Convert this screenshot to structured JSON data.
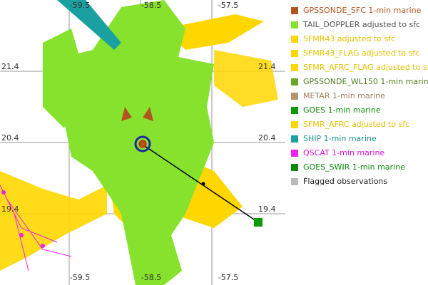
{
  "map": {
    "grid_labels": {
      "top": [
        "-59.5",
        "-58.5",
        "-57.5"
      ],
      "bottom": [
        "-59.5",
        "-58.5",
        "-57.5"
      ],
      "left": [
        "21.4",
        "20.4",
        "19.4"
      ],
      "right": [
        "21.4",
        "20.4",
        "19.4"
      ]
    },
    "legend": [
      {
        "label": "GPSSONDE_SFC 1-min marine",
        "color": "#b0561e",
        "text_color": "#b0561e"
      },
      {
        "label": "TAIL_DOPPLER adjusted to sfc",
        "color": "#86e22c",
        "text_color": "#555555"
      },
      {
        "label": "SFMR43 adjusted to sfc",
        "color": "#ffd700",
        "text_color": "#e8c000"
      },
      {
        "label": "SFMR43_FLAG adjusted to sfc",
        "color": "#ffd700",
        "text_color": "#e8c000"
      },
      {
        "label": "SFMR_AFRC_FLAG adjusted to sfc",
        "color": "#ffd700",
        "text_color": "#e8c000"
      },
      {
        "label": "GPSSONDE_WL150 1-min marine",
        "color": "#6aa82c",
        "text_color": "#4f7f20"
      },
      {
        "label": "METAR 1-min marine",
        "color": "#b8956a",
        "text_color": "#a0805a"
      },
      {
        "label": "GOES 1-min marine",
        "color": "#0a9a0a",
        "text_color": "#0a8a0a"
      },
      {
        "label": "SFMR_AFRC adjusted to sfc",
        "color": "#ffd700",
        "text_color": "#e8c000"
      },
      {
        "label": "SHIP 1-min marine",
        "color": "#1aa0a0",
        "text_color": "#1a9090"
      },
      {
        "label": "QSCAT 1-min marine",
        "color": "#ee22ee",
        "text_color": "#dd11dd"
      },
      {
        "label": "GOES_SWIR 1-min marine",
        "color": "#0a8a0a",
        "text_color": "#0a8a0a"
      },
      {
        "label": "Flagged observations",
        "color": "#bbbbbb",
        "text_color": "#222222"
      }
    ]
  }
}
